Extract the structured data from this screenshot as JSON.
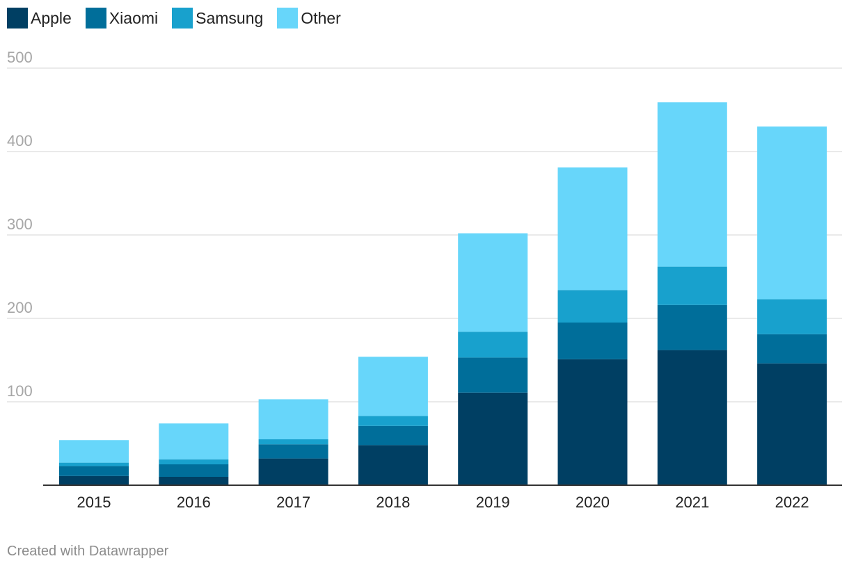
{
  "chart_data": {
    "type": "bar",
    "stacked": true,
    "title": "",
    "xlabel": "",
    "ylabel": "",
    "categories": [
      "2015",
      "2016",
      "2017",
      "2018",
      "2019",
      "2020",
      "2021",
      "2022"
    ],
    "series": [
      {
        "name": "Apple",
        "color": "#003f63",
        "values": [
          11,
          10,
          32,
          48,
          111,
          151,
          162,
          146
        ]
      },
      {
        "name": "Xiaomi",
        "color": "#006e9a",
        "values": [
          12,
          15,
          17,
          23,
          42,
          44,
          54,
          35
        ]
      },
      {
        "name": "Samsung",
        "color": "#18a1cd",
        "values": [
          4,
          6,
          6,
          12,
          31,
          39,
          46,
          42
        ]
      },
      {
        "name": "Other",
        "color": "#67d6fa",
        "values": [
          27,
          43,
          48,
          71,
          118,
          147,
          197,
          207
        ]
      }
    ],
    "ylim": [
      0,
      500
    ],
    "yticks": [
      100,
      200,
      300,
      400,
      500
    ],
    "grid": true,
    "legend": "top-left"
  },
  "legend": {
    "items": [
      {
        "label": "Apple",
        "color": "#003f63"
      },
      {
        "label": "Xiaomi",
        "color": "#006e9a"
      },
      {
        "label": "Samsung",
        "color": "#18a1cd"
      },
      {
        "label": "Other",
        "color": "#67d6fa"
      }
    ]
  },
  "footer": {
    "credit": "Created with Datawrapper"
  }
}
